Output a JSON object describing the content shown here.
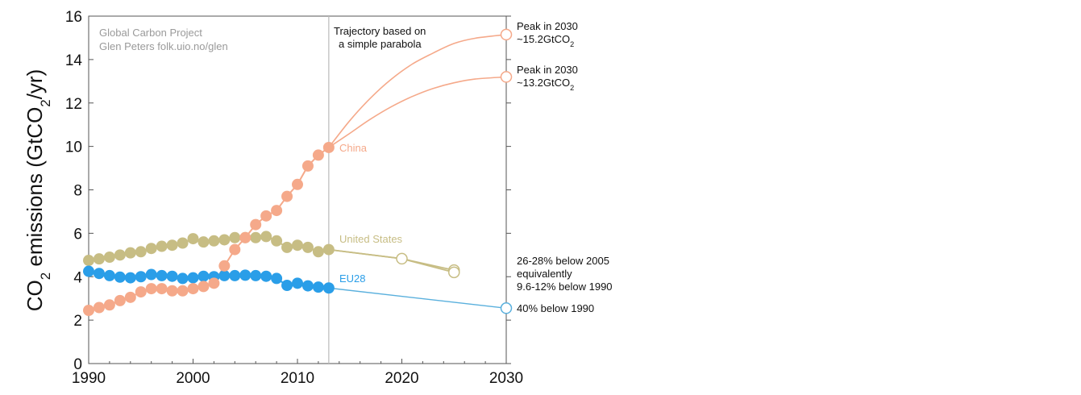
{
  "chart_data": {
    "type": "line",
    "ylabel": "CO2 emissions (GtCO2/yr)",
    "xlim": [
      1990,
      2030
    ],
    "ylim": [
      0,
      16
    ],
    "x_ticks": [
      1990,
      2000,
      2010,
      2020,
      2030
    ],
    "y_ticks": [
      0,
      2,
      4,
      6,
      8,
      10,
      12,
      14,
      16
    ],
    "grid": false,
    "credit": [
      "Global Carbon Project",
      "Glen Peters folk.uio.no/glen"
    ],
    "projection_start_year": 2013,
    "projection_note": [
      "Trajectory based on",
      "a simple parabola"
    ],
    "colors": {
      "china": "#f5a98a",
      "us": "#c7bd84",
      "eu": "#2a9ee8",
      "eu_projection": "#5ab0dd",
      "divider": "#bbbbbb"
    },
    "series": [
      {
        "name": "China",
        "x": [
          1990,
          1991,
          1992,
          1993,
          1994,
          1995,
          1996,
          1997,
          1998,
          1999,
          2000,
          2001,
          2002,
          2003,
          2004,
          2005,
          2006,
          2007,
          2008,
          2009,
          2010,
          2011,
          2012,
          2013
        ],
        "values": [
          2.45,
          2.58,
          2.7,
          2.9,
          3.05,
          3.3,
          3.45,
          3.45,
          3.35,
          3.35,
          3.45,
          3.55,
          3.7,
          4.5,
          5.25,
          5.8,
          6.4,
          6.8,
          7.05,
          7.7,
          8.25,
          9.1,
          9.6,
          9.95
        ],
        "projections": [
          {
            "x": [
              2013,
              2015,
              2017,
              2019,
              2021,
              2023,
              2025,
              2027,
              2030
            ],
            "values": [
              9.95,
              11.18,
              12.23,
              13.1,
              13.79,
              14.3,
              14.74,
              14.98,
              15.15
            ],
            "label": [
              "Peak in 2030",
              "~15.2GtCO2"
            ]
          },
          {
            "x": [
              2013,
              2015,
              2017,
              2019,
              2021,
              2023,
              2025,
              2027,
              2030
            ],
            "values": [
              9.95,
              10.6,
              11.26,
              11.83,
              12.3,
              12.67,
              12.93,
              13.1,
              13.2
            ],
            "label": [
              "Peak in 2030",
              "~13.2GtCO2"
            ]
          }
        ]
      },
      {
        "name": "United States",
        "x": [
          1990,
          1991,
          1992,
          1993,
          1994,
          1995,
          1996,
          1997,
          1998,
          1999,
          2000,
          2001,
          2002,
          2003,
          2004,
          2005,
          2006,
          2007,
          2008,
          2009,
          2010,
          2011,
          2012,
          2013
        ],
        "values": [
          4.75,
          4.82,
          4.9,
          5.0,
          5.1,
          5.15,
          5.3,
          5.4,
          5.45,
          5.55,
          5.75,
          5.6,
          5.65,
          5.7,
          5.8,
          5.8,
          5.8,
          5.85,
          5.65,
          5.35,
          5.45,
          5.35,
          5.15,
          5.25
        ],
        "targets": [
          {
            "x": 2020,
            "value": 4.83
          },
          {
            "x": 2025,
            "value": 4.3
          },
          {
            "x": 2025,
            "value": 4.2
          }
        ],
        "target_label": [
          "26-28% below 2005",
          "equivalently",
          "9.6-12% below 1990"
        ]
      },
      {
        "name": "EU28",
        "x": [
          1990,
          1991,
          1992,
          1993,
          1994,
          1995,
          1996,
          1997,
          1998,
          1999,
          2000,
          2001,
          2002,
          2003,
          2004,
          2005,
          2006,
          2007,
          2008,
          2009,
          2010,
          2011,
          2012,
          2013
        ],
        "values": [
          4.25,
          4.15,
          4.05,
          3.98,
          3.95,
          4.0,
          4.1,
          4.05,
          4.02,
          3.92,
          3.95,
          4.02,
          4.0,
          4.05,
          4.05,
          4.07,
          4.05,
          4.02,
          3.92,
          3.6,
          3.7,
          3.58,
          3.52,
          3.48
        ],
        "targets": [
          {
            "x": 2030,
            "value": 2.55
          }
        ],
        "target_label": [
          "40% below 1990"
        ]
      }
    ]
  }
}
